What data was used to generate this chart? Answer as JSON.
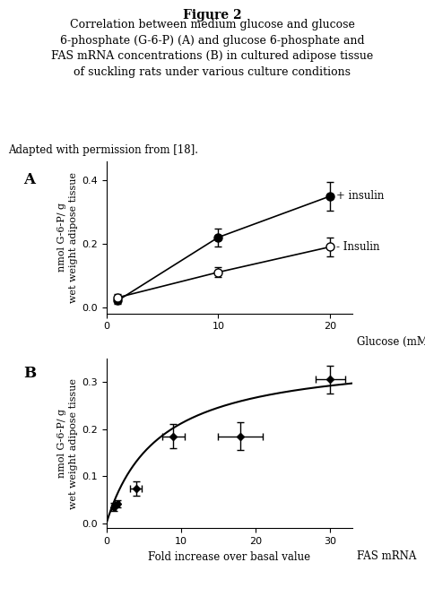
{
  "title": "Figure 2",
  "subtitle_line1": "Correlation between medium glucose and glucose",
  "subtitle_line2": "6-phosphate (G-6-P) (A) and glucose 6-phosphate and",
  "subtitle_line3": "FAS mRNA concentrations (B) in cultured adipose tissue",
  "subtitle_line4": "of suckling rats under various culture conditions",
  "adapted_text": "Adapted with permission from [18].",
  "panel_A": {
    "label": "A",
    "xlabel": "Glucose (mM)",
    "ylabel": "nmol G-6-P/ g\nwet weight adipose tissue",
    "xlim": [
      0,
      22
    ],
    "ylim": [
      -0.02,
      0.46
    ],
    "xticks": [
      0,
      10,
      20
    ],
    "yticks": [
      0,
      0.2,
      0.4
    ],
    "insulin_plus": {
      "x": [
        1,
        10,
        20
      ],
      "y": [
        0.02,
        0.22,
        0.35
      ],
      "yerr": [
        0.01,
        0.028,
        0.045
      ],
      "label": "+ insulin"
    },
    "insulin_minus": {
      "x": [
        1,
        10,
        20
      ],
      "y": [
        0.03,
        0.11,
        0.19
      ],
      "yerr": [
        0.01,
        0.015,
        0.03
      ],
      "label": "- Insulin"
    }
  },
  "panel_B": {
    "label": "B",
    "xlabel": "Fold increase over basal value",
    "ylabel": "nmol G-6-P/ g\nwet weight adipose tissue",
    "xlabel2": "FAS mRNA",
    "xlim": [
      0,
      33
    ],
    "ylim": [
      -0.01,
      0.35
    ],
    "xticks": [
      0,
      10,
      20,
      30
    ],
    "yticks": [
      0,
      0.1,
      0.2,
      0.3
    ],
    "data_points": {
      "x": [
        1.0,
        1.5,
        4.0,
        9.0,
        18.0,
        30.0
      ],
      "y": [
        0.035,
        0.042,
        0.075,
        0.185,
        0.185,
        0.305
      ],
      "xerr": [
        0.3,
        0.3,
        0.8,
        1.5,
        3.0,
        2.0
      ],
      "yerr": [
        0.008,
        0.008,
        0.015,
        0.025,
        0.03,
        0.03
      ]
    },
    "curve_vmax": 0.36,
    "curve_km": 7.0
  },
  "bg_color": "#ffffff",
  "text_color": "#000000"
}
